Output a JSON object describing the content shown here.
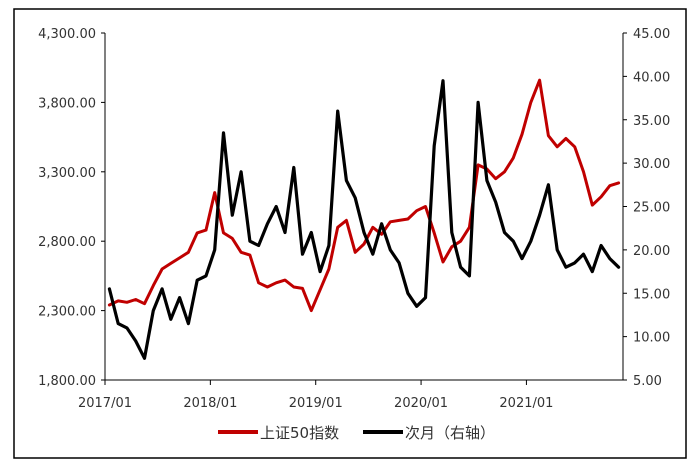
{
  "chart_data": {
    "type": "line",
    "title": "",
    "x_ticks": [
      "2017/01",
      "2018/01",
      "2019/01",
      "2020/01",
      "2021/01"
    ],
    "x_range": [
      "2017-01",
      "2021-11"
    ],
    "y_left": {
      "ylim": [
        1800,
        4300
      ],
      "ticks": [
        "1,800.00",
        "2,300.00",
        "2,800.00",
        "3,300.00",
        "3,800.00",
        "4,300.00"
      ]
    },
    "y_right": {
      "ylim": [
        5,
        45
      ],
      "ticks": [
        "5.00",
        "10.00",
        "15.00",
        "20.00",
        "25.00",
        "30.00",
        "35.00",
        "40.00",
        "45.00"
      ]
    },
    "grid": false,
    "legend_position": "bottom",
    "series": [
      {
        "name": "上证50指数",
        "axis": "left",
        "color": "#c00000",
        "points": [
          [
            "2017-01",
            2340
          ],
          [
            "2017-02",
            2370
          ],
          [
            "2017-03",
            2360
          ],
          [
            "2017-04",
            2380
          ],
          [
            "2017-05",
            2350
          ],
          [
            "2017-06",
            2480
          ],
          [
            "2017-07",
            2600
          ],
          [
            "2017-08",
            2640
          ],
          [
            "2017-09",
            2680
          ],
          [
            "2017-10",
            2720
          ],
          [
            "2017-11",
            2860
          ],
          [
            "2017-12",
            2880
          ],
          [
            "2018-01",
            3150
          ],
          [
            "2018-02",
            2860
          ],
          [
            "2018-03",
            2820
          ],
          [
            "2018-04",
            2720
          ],
          [
            "2018-05",
            2700
          ],
          [
            "2018-06",
            2500
          ],
          [
            "2018-07",
            2470
          ],
          [
            "2018-08",
            2500
          ],
          [
            "2018-09",
            2520
          ],
          [
            "2018-10",
            2470
          ],
          [
            "2018-11",
            2460
          ],
          [
            "2018-12",
            2300
          ],
          [
            "2019-01",
            2450
          ],
          [
            "2019-02",
            2600
          ],
          [
            "2019-03",
            2900
          ],
          [
            "2019-04",
            2950
          ],
          [
            "2019-05",
            2720
          ],
          [
            "2019-06",
            2780
          ],
          [
            "2019-07",
            2900
          ],
          [
            "2019-08",
            2850
          ],
          [
            "2019-09",
            2940
          ],
          [
            "2019-10",
            2950
          ],
          [
            "2019-11",
            2960
          ],
          [
            "2019-12",
            3020
          ],
          [
            "2020-01",
            3050
          ],
          [
            "2020-02",
            2860
          ],
          [
            "2020-03",
            2650
          ],
          [
            "2020-04",
            2760
          ],
          [
            "2020-05",
            2800
          ],
          [
            "2020-06",
            2900
          ],
          [
            "2020-07",
            3350
          ],
          [
            "2020-08",
            3320
          ],
          [
            "2020-09",
            3250
          ],
          [
            "2020-10",
            3300
          ],
          [
            "2020-11",
            3400
          ],
          [
            "2020-12",
            3570
          ],
          [
            "2021-01",
            3800
          ],
          [
            "2021-02",
            3960
          ],
          [
            "2021-03",
            3560
          ],
          [
            "2021-04",
            3480
          ],
          [
            "2021-05",
            3540
          ],
          [
            "2021-06",
            3480
          ],
          [
            "2021-07",
            3300
          ],
          [
            "2021-08",
            3060
          ],
          [
            "2021-09",
            3120
          ],
          [
            "2021-10",
            3200
          ],
          [
            "2021-11",
            3220
          ]
        ]
      },
      {
        "name": "次月（右轴）",
        "axis": "right",
        "color": "#000000",
        "points": [
          [
            "2017-01",
            15.5
          ],
          [
            "2017-02",
            11.5
          ],
          [
            "2017-03",
            11
          ],
          [
            "2017-04",
            9.5
          ],
          [
            "2017-05",
            7.5
          ],
          [
            "2017-06",
            13
          ],
          [
            "2017-07",
            15.5
          ],
          [
            "2017-08",
            12
          ],
          [
            "2017-09",
            14.5
          ],
          [
            "2017-10",
            11.5
          ],
          [
            "2017-11",
            16.5
          ],
          [
            "2017-12",
            17
          ],
          [
            "2018-01",
            20
          ],
          [
            "2018-02",
            33.5
          ],
          [
            "2018-03",
            24
          ],
          [
            "2018-04",
            29
          ],
          [
            "2018-05",
            21
          ],
          [
            "2018-06",
            20.5
          ],
          [
            "2018-07",
            23
          ],
          [
            "2018-08",
            25
          ],
          [
            "2018-09",
            22
          ],
          [
            "2018-10",
            29.5
          ],
          [
            "2018-11",
            19.5
          ],
          [
            "2018-12",
            22
          ],
          [
            "2019-01",
            17.5
          ],
          [
            "2019-02",
            20.5
          ],
          [
            "2019-03",
            36
          ],
          [
            "2019-04",
            28
          ],
          [
            "2019-05",
            26
          ],
          [
            "2019-06",
            22
          ],
          [
            "2019-07",
            19.5
          ],
          [
            "2019-08",
            23
          ],
          [
            "2019-09",
            20
          ],
          [
            "2019-10",
            18.5
          ],
          [
            "2019-11",
            15
          ],
          [
            "2019-12",
            13.5
          ],
          [
            "2020-01",
            14.5
          ],
          [
            "2020-02",
            32
          ],
          [
            "2020-03",
            39.5
          ],
          [
            "2020-04",
            22
          ],
          [
            "2020-05",
            18
          ],
          [
            "2020-06",
            17
          ],
          [
            "2020-07",
            37
          ],
          [
            "2020-08",
            28
          ],
          [
            "2020-09",
            25.5
          ],
          [
            "2020-10",
            22
          ],
          [
            "2020-11",
            21
          ],
          [
            "2020-12",
            19
          ],
          [
            "2021-01",
            21
          ],
          [
            "2021-02",
            24
          ],
          [
            "2021-03",
            27.5
          ],
          [
            "2021-04",
            20
          ],
          [
            "2021-05",
            18
          ],
          [
            "2021-06",
            18.5
          ],
          [
            "2021-07",
            19.5
          ],
          [
            "2021-08",
            17.5
          ],
          [
            "2021-09",
            20.5
          ],
          [
            "2021-10",
            19
          ],
          [
            "2021-11",
            18
          ]
        ]
      }
    ]
  }
}
